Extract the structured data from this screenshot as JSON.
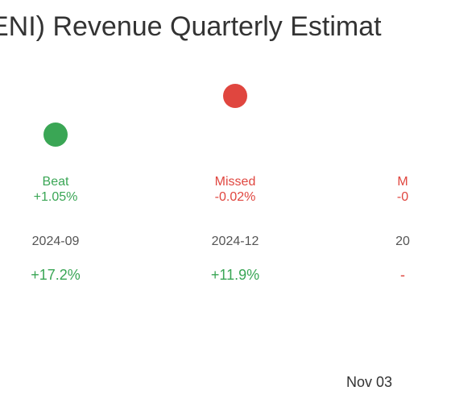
{
  "title": "ENI) Revenue Quarterly Estimat",
  "footer_text": "Nov 03",
  "colors": {
    "beat": "#3aa655",
    "missed": "#e0463f",
    "title": "#333333"
  },
  "chart_data": {
    "type": "scatter",
    "title": "ENI) Revenue Quarterly Estimat",
    "points": [
      {
        "result": "Beat",
        "surprise": "+1.05%",
        "surprise_value": 1.05,
        "period": "2024-09",
        "change": "+17.2%",
        "change_value": 17.2
      },
      {
        "result": "Missed",
        "surprise": "-0.02%",
        "surprise_value": -0.02,
        "period": "2024-12",
        "change": "+11.9%",
        "change_value": 11.9
      },
      {
        "result": "M",
        "surprise": "-0",
        "surprise_value": null,
        "period": "20",
        "change": "-",
        "change_value": null
      }
    ]
  }
}
